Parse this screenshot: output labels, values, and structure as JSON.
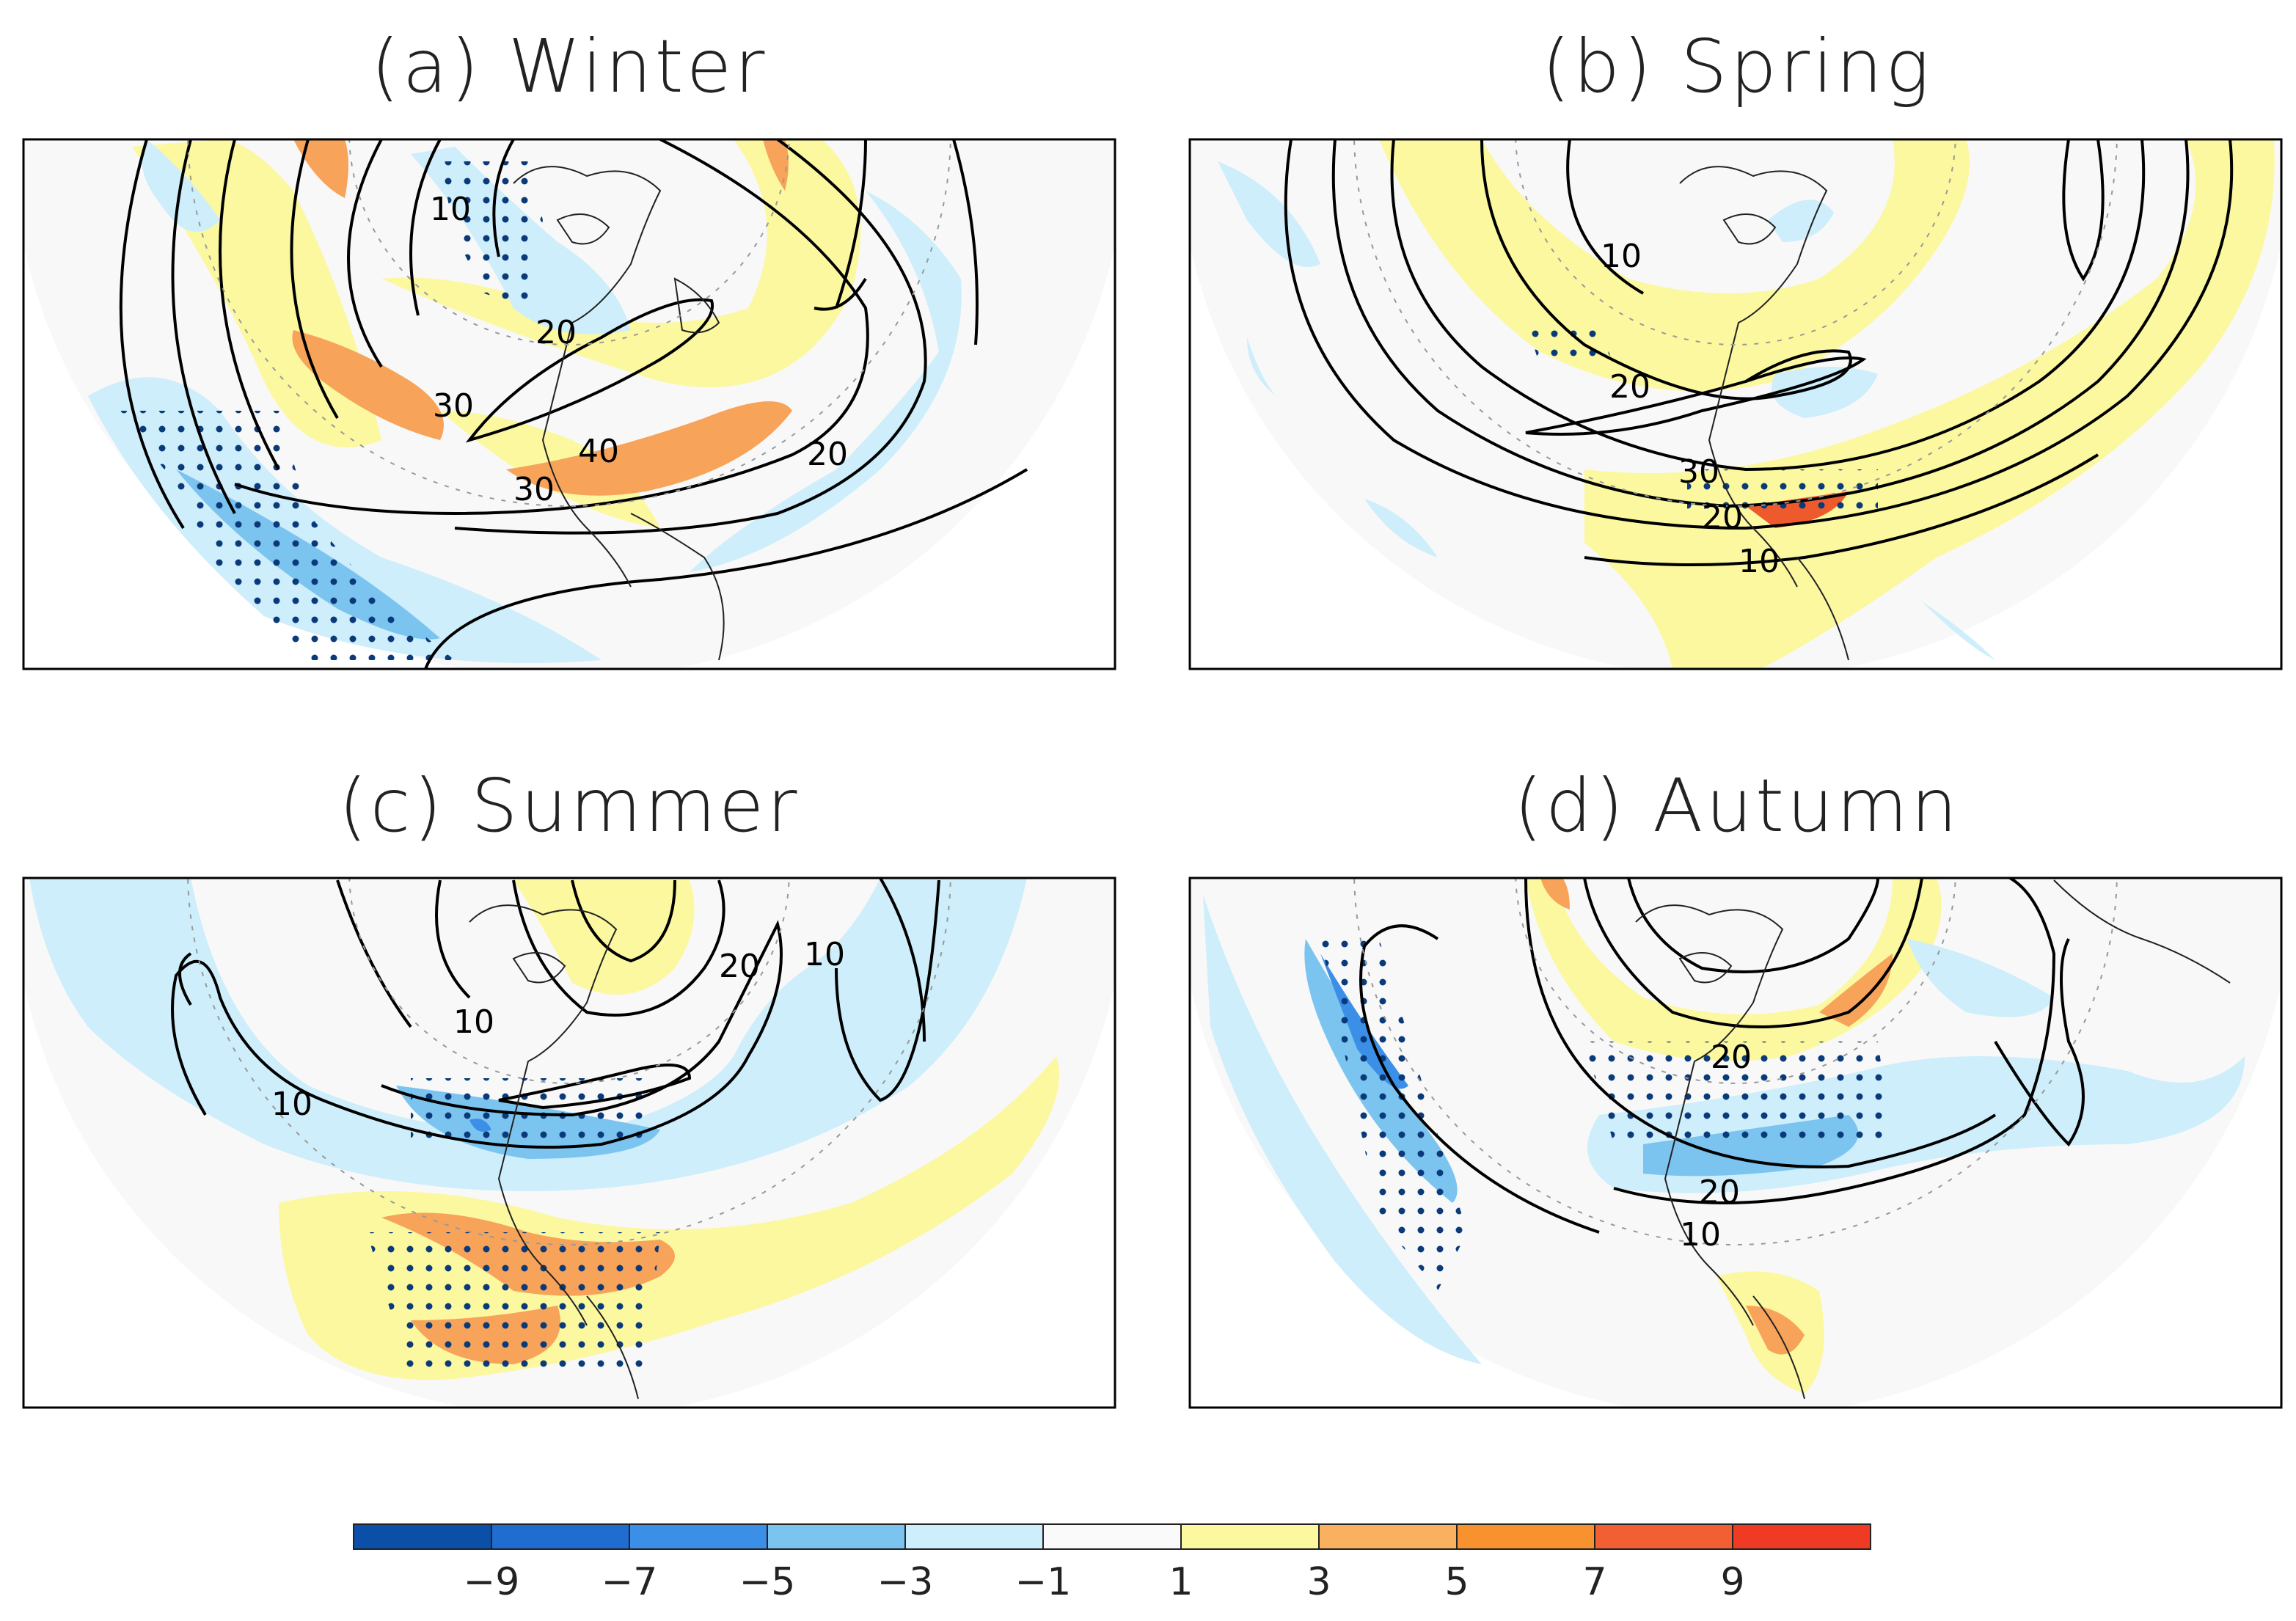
{
  "figure": {
    "panels": [
      {
        "id": "a",
        "title": "(a) Winter",
        "contour_labels": [
          "10",
          "20",
          "30",
          "40",
          "30",
          "20"
        ]
      },
      {
        "id": "b",
        "title": "(b) Spring",
        "contour_labels": [
          "10",
          "20",
          "30",
          "20",
          "10"
        ]
      },
      {
        "id": "c",
        "title": "(c) Summer",
        "contour_labels": [
          "20",
          "10",
          "10",
          "10"
        ]
      },
      {
        "id": "d",
        "title": "(d) Autumn",
        "contour_labels": [
          "20",
          "20",
          "10"
        ]
      }
    ],
    "colorbar": {
      "colors": [
        "#0b4fa8",
        "#1f6dd0",
        "#3c8fe6",
        "#7cc4f0",
        "#cdeefa",
        "#fafafa",
        "#fbf8a0",
        "#f9b160",
        "#f7922f",
        "#f25f33",
        "#ef3b23"
      ],
      "tick_labels": [
        "−9",
        "−7",
        "−5",
        "−3",
        "−1",
        "1",
        "3",
        "5",
        "7",
        "9"
      ]
    },
    "legend_colors": {
      "strong_negative": "#2f7fd8",
      "negative": "#7cc4f0",
      "weak_negative": "#cdeefa",
      "neutral": "#f8f8f8",
      "weak_positive": "#fbf8a0",
      "positive": "#f7a35a",
      "strong_positive": "#ef5a2c",
      "stipple": "#0a3a7a",
      "contour": "#000000"
    }
  }
}
